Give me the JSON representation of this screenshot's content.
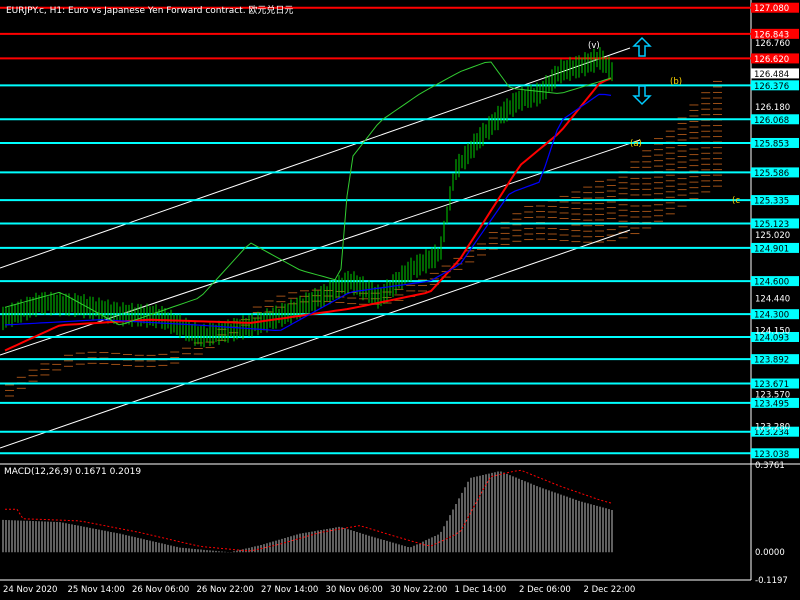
{
  "chart_header": {
    "title": "EURJPY.c, H1: Euro vs Japanese Yen Forward contract. 欧元兑日元",
    "macd_label": "MACD(12,26,9) 0.1671 0.2019"
  },
  "colors": {
    "background": "#000000",
    "price_bars": "#00cc00",
    "ma_fast": "#ff0000",
    "ma_slow": "#0000ff",
    "green_line": "#32cd32",
    "channel": "#ffffff",
    "level_cyan": "#00ffff",
    "level_red": "#ff0000",
    "cloud": "#d2691e",
    "wave_label": "#ffd700",
    "macd_hist": "#c0c0c0",
    "macd_signal": "#ff0000"
  },
  "chart_data": {
    "type": "line",
    "title": "",
    "xlabel": "",
    "ylabel": "",
    "ylim": [
      122.95,
      127.15
    ],
    "x_tick_labels": [
      "24 Nov 2020",
      "25 Nov 14:00",
      "26 Nov 06:00",
      "26 Nov 22:00",
      "27 Nov 14:00",
      "30 Nov 06:00",
      "30 Nov 22:00",
      "1 Dec 14:00",
      "2 Dec 06:00",
      "2 Dec 22:00"
    ],
    "y_axis_ticks": [
      "126.760",
      "126.180",
      "125.020",
      "124.440",
      "124.150",
      "123.570",
      "123.280"
    ],
    "price_now": "126.484",
    "levels": [
      {
        "value": 127.08,
        "label": "127.080",
        "color": "red"
      },
      {
        "value": 126.843,
        "label": "126.843",
        "color": "red"
      },
      {
        "value": 126.62,
        "label": "126.620",
        "color": "red"
      },
      {
        "value": 126.376,
        "label": "126.376",
        "color": "cyan"
      },
      {
        "value": 126.068,
        "label": "126.068",
        "color": "cyan"
      },
      {
        "value": 125.853,
        "label": "125.853",
        "color": "cyan"
      },
      {
        "value": 125.586,
        "label": "125.586",
        "color": "cyan"
      },
      {
        "value": 125.335,
        "label": "125.335",
        "color": "cyan"
      },
      {
        "value": 125.123,
        "label": "125.123",
        "color": "cyan"
      },
      {
        "value": 124.901,
        "label": "124.901",
        "color": "cyan"
      },
      {
        "value": 124.6,
        "label": "124.600",
        "color": "cyan"
      },
      {
        "value": 124.3,
        "label": "124.300",
        "color": "cyan"
      },
      {
        "value": 124.093,
        "label": "124.093",
        "color": "cyan"
      },
      {
        "value": 123.892,
        "label": "123.892",
        "color": "cyan"
      },
      {
        "value": 123.671,
        "label": "123.671",
        "color": "cyan"
      },
      {
        "value": 123.495,
        "label": "123.495",
        "color": "cyan"
      },
      {
        "value": 123.234,
        "label": "123.234",
        "color": "cyan"
      },
      {
        "value": 123.038,
        "label": "123.038",
        "color": "cyan"
      }
    ],
    "wave_labels": [
      "(v)",
      "(b)",
      "(a)",
      "(c"
    ],
    "macd_axis_ticks": [
      "0.3761",
      "0.0000",
      "-0.1197"
    ],
    "macd_ylim": [
      -0.1197,
      0.3761
    ]
  }
}
